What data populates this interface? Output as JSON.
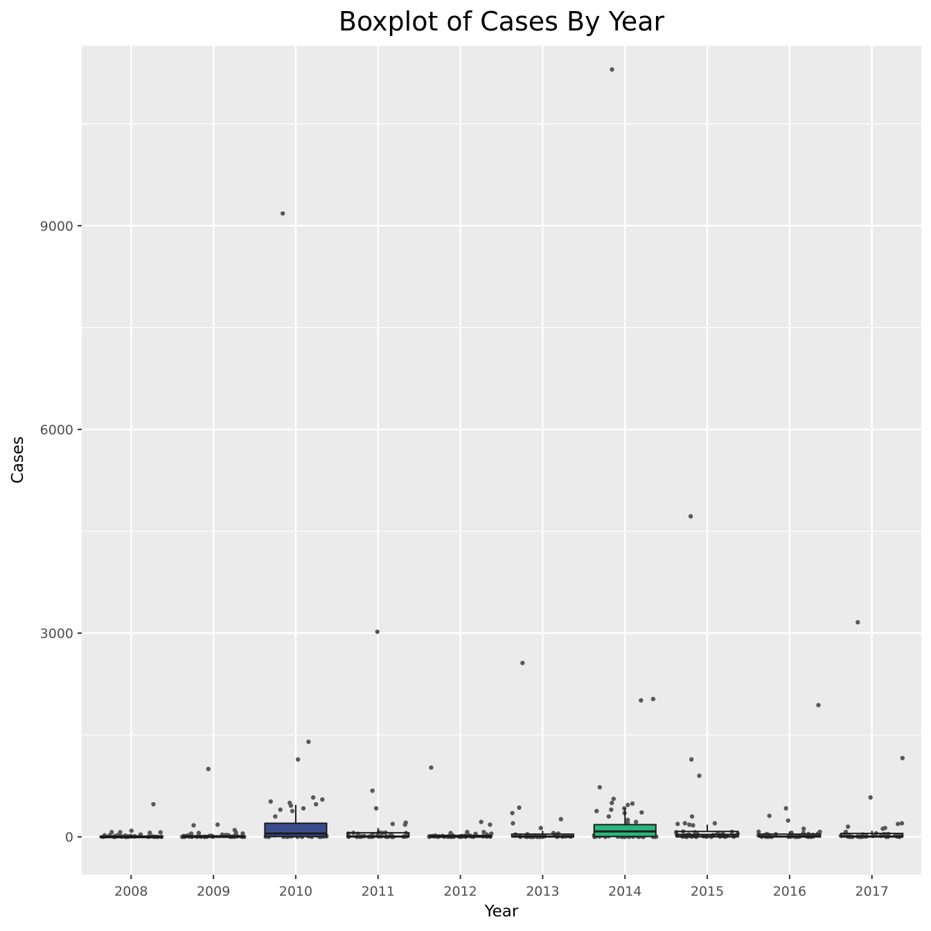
{
  "chart_data": {
    "type": "boxplot",
    "title": "Boxplot of Cases By Year",
    "xlabel": "Year",
    "ylabel": "Cases",
    "categories": [
      "2008",
      "2009",
      "2010",
      "2011",
      "2012",
      "2013",
      "2014",
      "2015",
      "2016",
      "2017"
    ],
    "y_ticks": [
      0,
      3000,
      6000,
      9000
    ],
    "ylim": [
      -560,
      11650
    ],
    "grid": true,
    "colors": {
      "panel": "#ebebeb",
      "grid": "#ffffff",
      "point": "#595959",
      "box_2010": "#3b4c8c",
      "box_2014": "#2ab77e",
      "box_default": "#ebebeb",
      "box_line": "#1a1a1a",
      "tick": "#333333"
    },
    "boxes": [
      {
        "year": "2008",
        "q1": 0,
        "median": 2,
        "q3": 10,
        "whisker_low": 0,
        "whisker_high": 20,
        "fill": "box_default"
      },
      {
        "year": "2009",
        "q1": 0,
        "median": 2,
        "q3": 15,
        "whisker_low": 0,
        "whisker_high": 30,
        "fill": "box_default"
      },
      {
        "year": "2010",
        "q1": 5,
        "median": 50,
        "q3": 200,
        "whisker_low": 0,
        "whisker_high": 470,
        "fill": "box_2010"
      },
      {
        "year": "2011",
        "q1": 0,
        "median": 5,
        "q3": 60,
        "whisker_low": 0,
        "whisker_high": 130,
        "fill": "box_default"
      },
      {
        "year": "2012",
        "q1": 0,
        "median": 2,
        "q3": 20,
        "whisker_low": 0,
        "whisker_high": 40,
        "fill": "box_default"
      },
      {
        "year": "2013",
        "q1": 0,
        "median": 5,
        "q3": 40,
        "whisker_low": 0,
        "whisker_high": 90,
        "fill": "box_default"
      },
      {
        "year": "2014",
        "q1": 5,
        "median": 80,
        "q3": 180,
        "whisker_low": 0,
        "whisker_high": 420,
        "fill": "box_2014"
      },
      {
        "year": "2015",
        "q1": 0,
        "median": 30,
        "q3": 80,
        "whisker_low": 0,
        "whisker_high": 180,
        "fill": "box_default"
      },
      {
        "year": "2016",
        "q1": 0,
        "median": 5,
        "q3": 40,
        "whisker_low": 0,
        "whisker_high": 80,
        "fill": "box_default"
      },
      {
        "year": "2017",
        "q1": 0,
        "median": 5,
        "q3": 50,
        "whisker_low": 0,
        "whisker_high": 90,
        "fill": "box_default"
      }
    ],
    "outliers": [
      {
        "year": "2008",
        "values": [
          480,
          90,
          60
        ]
      },
      {
        "year": "2009",
        "values": [
          1000,
          180,
          170,
          100
        ]
      },
      {
        "year": "2010",
        "values": [
          9180,
          1400,
          1140,
          520,
          580,
          550,
          500,
          480,
          460,
          420,
          400,
          380,
          300
        ]
      },
      {
        "year": "2011",
        "values": [
          3020,
          680,
          420,
          210,
          190,
          180
        ]
      },
      {
        "year": "2012",
        "values": [
          1020,
          220,
          180
        ]
      },
      {
        "year": "2013",
        "values": [
          2560,
          430,
          350,
          260,
          200,
          130
        ]
      },
      {
        "year": "2014",
        "values": [
          11300,
          2030,
          2010,
          730,
          560,
          500,
          490,
          470,
          420,
          400,
          380,
          360,
          350,
          300,
          250,
          220,
          210
        ]
      },
      {
        "year": "2015",
        "values": [
          4720,
          1140,
          900,
          300,
          200,
          200,
          190,
          180,
          170
        ]
      },
      {
        "year": "2016",
        "values": [
          1940,
          420,
          310,
          240,
          120
        ]
      },
      {
        "year": "2017",
        "values": [
          3160,
          1160,
          580,
          200,
          190,
          150,
          130,
          120
        ]
      }
    ]
  }
}
